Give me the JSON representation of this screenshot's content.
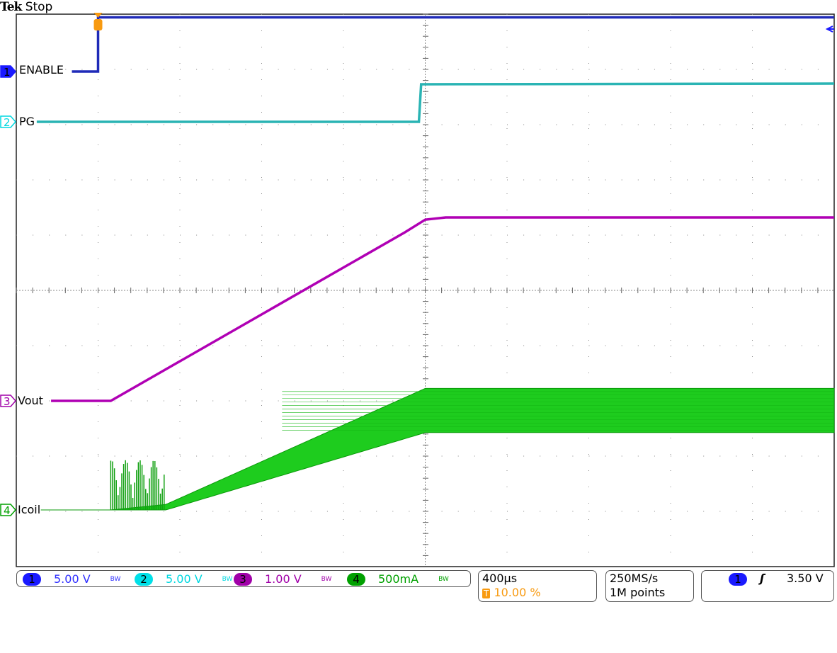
{
  "header": {
    "brand": "Tek",
    "status": "Stop"
  },
  "channels": [
    {
      "num": "1",
      "label": "ENABLE",
      "scale": "5.00 V",
      "bw": "BW",
      "color": "#1a1aff",
      "trace": "#1f2ab8"
    },
    {
      "num": "2",
      "label": "PG",
      "scale": "5.00 V",
      "bw": "BW",
      "color": "#00e0e8",
      "trace": "#2ab4b4"
    },
    {
      "num": "3",
      "label": "Vout",
      "scale": "1.00 V",
      "bw": "BW",
      "color": "#a000a8",
      "trace": "#b000b4"
    },
    {
      "num": "4",
      "label": "Icoil",
      "scale": "500mA",
      "bw": "BW",
      "color": "#00a000",
      "trace": "#1ecc1e"
    }
  ],
  "timebase": {
    "per_div": "400µs",
    "trigger_pos": "10.00 %",
    "trigger_icon": "T"
  },
  "acquisition": {
    "rate": "250MS/s",
    "record": "1M points"
  },
  "trigger": {
    "source": "1",
    "slope_icon": "rising-edge-icon",
    "level": "3.50 V"
  },
  "chart_data": {
    "type": "line",
    "x_unit": "µs",
    "xlim": [
      -400,
      3600
    ],
    "grid": true,
    "divisions": {
      "x": 10,
      "y": 10
    },
    "series": [
      {
        "name": "ENABLE",
        "unit": "V",
        "x": [
          -128,
          0,
          0,
          3600
        ],
        "y": [
          0,
          0,
          4.9,
          4.9
        ]
      },
      {
        "name": "PG",
        "unit": "V",
        "x": [
          -300,
          1569,
          1580,
          3600
        ],
        "y": [
          0,
          0,
          3.4,
          3.46
        ]
      },
      {
        "name": "Vout",
        "unit": "V",
        "x": [
          -230,
          62,
          1500,
          1600,
          1700,
          3600
        ],
        "y": [
          0,
          0,
          3.05,
          3.28,
          3.32,
          3.32
        ]
      },
      {
        "name": "Icoil",
        "unit": "A",
        "x": [
          -280,
          62,
          332,
          1600,
          3600
        ],
        "upper": [
          0,
          0,
          0.05,
          1.1,
          1.1
        ],
        "lower": [
          0,
          0,
          0,
          0.7,
          0.7
        ]
      }
    ]
  }
}
